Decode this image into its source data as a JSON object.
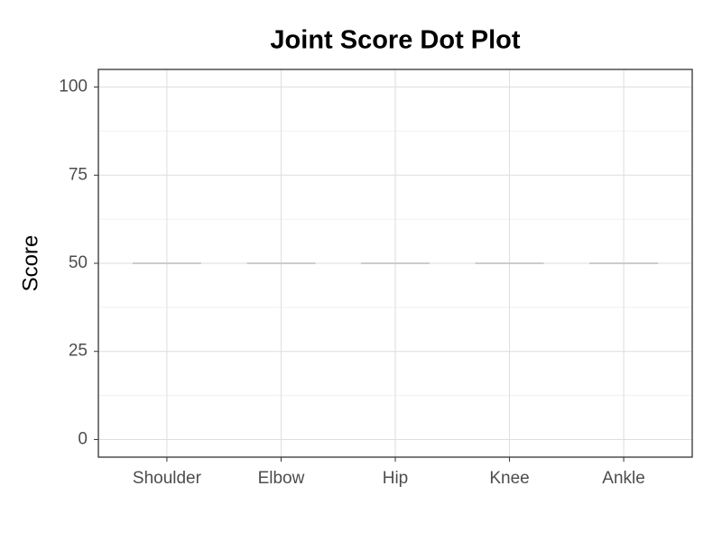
{
  "chart_data": {
    "type": "dot",
    "title": "Joint Score Dot Plot",
    "y_label": "Score",
    "categories": [
      "Shoulder",
      "Elbow",
      "Hip",
      "Knee",
      "Ankle"
    ],
    "values": [
      50,
      50,
      50,
      50,
      50
    ],
    "color": "#cccccc",
    "ylim": [
      -5,
      105
    ],
    "yticks": [
      0,
      25,
      50,
      75,
      100
    ],
    "minor_yticks": [
      12.5,
      37.5,
      62.5,
      87.5
    ],
    "grid": true
  }
}
